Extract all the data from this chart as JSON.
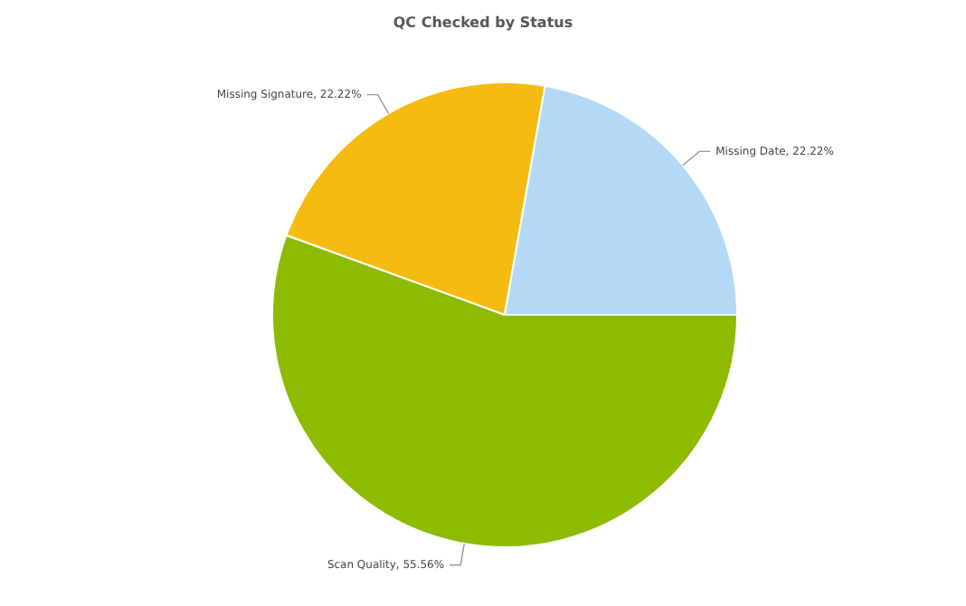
{
  "chart_data": {
    "type": "pie",
    "title": "QC Checked by Status",
    "categories": [
      "Scan Quality",
      "Missing Signature",
      "Missing Date"
    ],
    "values": [
      55.56,
      22.22,
      22.22
    ],
    "value_labels": [
      "55.56%",
      "22.22%",
      "22.22%"
    ],
    "colors": [
      "#8cbb00",
      "#f5bb10",
      "#b3d9f7"
    ],
    "legend": false
  }
}
